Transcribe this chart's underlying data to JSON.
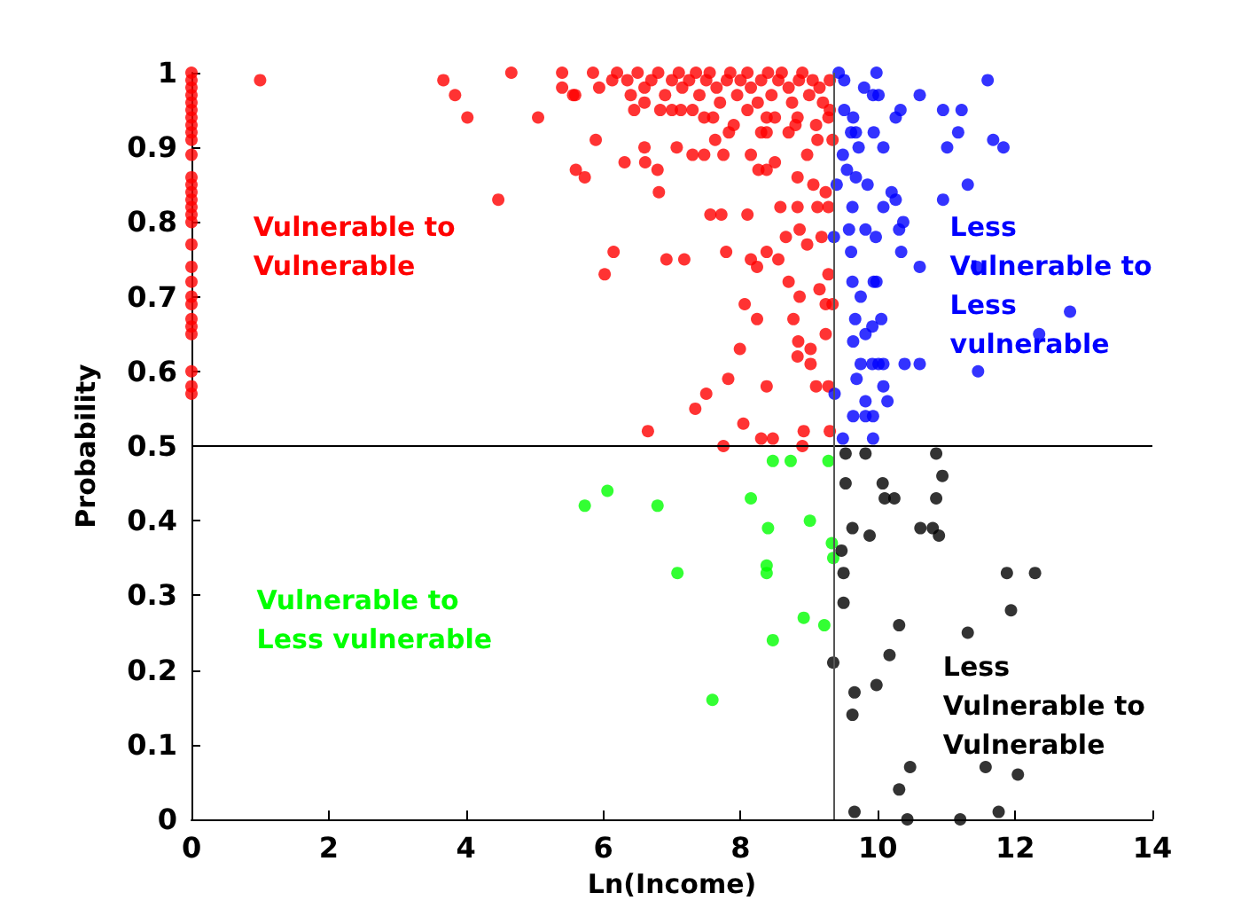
{
  "chart_data": {
    "type": "scatter",
    "xlabel": "Ln(Income)",
    "ylabel": "Probability",
    "xlim": [
      0,
      14
    ],
    "ylim": [
      0,
      1
    ],
    "xticks": [
      0,
      2,
      4,
      6,
      8,
      10,
      12,
      14
    ],
    "yticks": [
      0,
      0.1,
      0.2,
      0.3,
      0.4,
      0.5,
      0.6,
      0.7,
      0.8,
      0.9,
      1
    ],
    "marker": "circle",
    "ref_lines": [
      {
        "axis": "y",
        "value": 0.5,
        "color": "#000000"
      },
      {
        "axis": "x",
        "value": 9.35,
        "color": "#555555"
      }
    ],
    "series": [
      {
        "name": "Vulnerable to\nVulnerable",
        "color": "#ff0000",
        "x": [
          0,
          0,
          0,
          0,
          0,
          0,
          0,
          0,
          0,
          0,
          0,
          0,
          0,
          0,
          0,
          0,
          0,
          0,
          0,
          0,
          0,
          0,
          0,
          0,
          0,
          0,
          0,
          0,
          0,
          1.0,
          3.67,
          3.84,
          4.02,
          4.66,
          4.47,
          5.05,
          5.4,
          5.4,
          5.59,
          5.56,
          5.89,
          5.85,
          5.94,
          5.6,
          5.73,
          6.13,
          6.31,
          6.6,
          6.61,
          6.79,
          6.81,
          6.15,
          6.02,
          6.92,
          7.18,
          6.65,
          7.34,
          7.5,
          7.82,
          7.75,
          8.04,
          8.3,
          8.47,
          8.9,
          8.38,
          8.92,
          9.1,
          9.3,
          9.28,
          7.99,
          8.06,
          8.24,
          8.77,
          8.84,
          8.83,
          9.02,
          9.02,
          9.24,
          9.24,
          9.34,
          9.15,
          9.28,
          8.7,
          8.86,
          8.15,
          8.24,
          8.38,
          8.55,
          7.79,
          8.1,
          7.56,
          7.72,
          8.58,
          8.66,
          8.83,
          8.97,
          9.12,
          9.28,
          9.18,
          8.86,
          8.38,
          8.5,
          8.26,
          8.15,
          7.75,
          7.63,
          7.47,
          7.3,
          7.07,
          9.06,
          9.24,
          8.83,
          8.97,
          9.34,
          9.12,
          8.7,
          8.38,
          7.83,
          7.47,
          7.13,
          6.83,
          6.45,
          8.38,
          8.83,
          9.28,
          6.2,
          6.35,
          6.5,
          6.6,
          6.7,
          6.8,
          6.9,
          7.0,
          7.1,
          7.15,
          7.25,
          7.35,
          7.4,
          7.5,
          7.55,
          7.65,
          7.7,
          7.8,
          7.85,
          7.95,
          8.0,
          8.1,
          8.15,
          8.25,
          8.3,
          8.4,
          8.45,
          8.55,
          8.6,
          8.7,
          8.75,
          8.85,
          8.9,
          9.0,
          9.05,
          9.15,
          9.2,
          9.3,
          6.6,
          7.0,
          7.3,
          7.6,
          8.1,
          8.5,
          8.8,
          9.1,
          9.3,
          6.4,
          7.9,
          8.3
        ],
        "values": [
          1.0,
          0.99,
          0.98,
          0.97,
          0.96,
          0.95,
          0.94,
          0.93,
          0.92,
          0.91,
          0.89,
          0.86,
          0.85,
          0.84,
          0.83,
          0.82,
          0.81,
          0.8,
          0.77,
          0.74,
          0.72,
          0.7,
          0.69,
          0.67,
          0.66,
          0.65,
          0.6,
          0.58,
          0.57,
          0.99,
          0.99,
          0.97,
          0.94,
          1.0,
          0.83,
          0.94,
          1.0,
          0.98,
          0.97,
          0.97,
          0.91,
          1.0,
          0.98,
          0.87,
          0.86,
          0.99,
          0.88,
          0.9,
          0.88,
          0.87,
          0.84,
          0.76,
          0.73,
          0.75,
          0.75,
          0.52,
          0.55,
          0.57,
          0.59,
          0.5,
          0.53,
          0.51,
          0.51,
          0.5,
          0.58,
          0.52,
          0.58,
          0.52,
          0.58,
          0.63,
          0.69,
          0.67,
          0.67,
          0.64,
          0.62,
          0.63,
          0.61,
          0.65,
          0.69,
          0.69,
          0.71,
          0.73,
          0.72,
          0.7,
          0.75,
          0.74,
          0.76,
          0.75,
          0.76,
          0.81,
          0.81,
          0.81,
          0.82,
          0.78,
          0.82,
          0.77,
          0.82,
          0.82,
          0.78,
          0.79,
          0.87,
          0.88,
          0.87,
          0.89,
          0.89,
          0.91,
          0.89,
          0.89,
          0.9,
          0.85,
          0.84,
          0.86,
          0.89,
          0.91,
          0.91,
          0.92,
          0.92,
          0.92,
          0.94,
          0.95,
          0.95,
          0.95,
          0.94,
          0.94,
          0.94,
          1.0,
          0.99,
          1.0,
          0.98,
          0.99,
          1.0,
          0.97,
          0.99,
          1.0,
          0.98,
          0.99,
          1.0,
          0.97,
          0.99,
          1.0,
          0.98,
          0.96,
          0.99,
          1.0,
          0.97,
          0.99,
          1.0,
          0.98,
          0.96,
          0.99,
          1.0,
          0.97,
          0.99,
          1.0,
          0.98,
          0.96,
          0.99,
          1.0,
          0.97,
          0.99,
          0.98,
          0.96,
          0.99,
          0.96,
          0.95,
          0.95,
          0.94,
          0.95,
          0.94,
          0.93,
          0.93,
          0.95,
          0.97,
          0.93,
          0.92
        ]
      },
      {
        "name": "Less\nVulnerable to\nLess\nvulnerable",
        "color": "#0000ff",
        "x": [
          9.43,
          9.51,
          9.8,
          9.98,
          9.93,
          10.01,
          10.61,
          11.6,
          10.95,
          11.22,
          10.26,
          10.33,
          9.51,
          9.64,
          9.68,
          9.61,
          9.94,
          11.17,
          11.68,
          11.83,
          11.01,
          10.08,
          9.72,
          9.49,
          9.55,
          9.68,
          9.85,
          9.4,
          11.31,
          10.2,
          10.26,
          10.95,
          10.08,
          9.63,
          10.37,
          10.31,
          9.82,
          9.97,
          9.58,
          9.36,
          9.61,
          10.34,
          10.61,
          9.63,
          9.94,
          9.98,
          9.75,
          12.8,
          12.35,
          11.46,
          9.67,
          10.05,
          9.92,
          9.82,
          9.64,
          10.01,
          9.92,
          10.08,
          10.39,
          10.61,
          9.75,
          9.69,
          10.08,
          9.37,
          9.82,
          10.14,
          9.64,
          9.82,
          9.93,
          9.49,
          9.93,
          11.44
        ],
        "values": [
          1.0,
          0.99,
          0.98,
          1.0,
          0.97,
          0.97,
          0.97,
          0.99,
          0.95,
          0.95,
          0.94,
          0.95,
          0.95,
          0.94,
          0.92,
          0.92,
          0.92,
          0.92,
          0.91,
          0.9,
          0.9,
          0.9,
          0.9,
          0.89,
          0.87,
          0.86,
          0.85,
          0.85,
          0.85,
          0.84,
          0.83,
          0.83,
          0.82,
          0.82,
          0.8,
          0.79,
          0.79,
          0.78,
          0.79,
          0.78,
          0.76,
          0.76,
          0.74,
          0.72,
          0.72,
          0.72,
          0.7,
          0.68,
          0.65,
          0.6,
          0.67,
          0.67,
          0.66,
          0.65,
          0.64,
          0.61,
          0.61,
          0.61,
          0.61,
          0.61,
          0.61,
          0.59,
          0.58,
          0.57,
          0.56,
          0.56,
          0.54,
          0.54,
          0.54,
          0.51,
          0.51,
          0.74
        ]
      },
      {
        "name": "Vulnerable to\nLess vulnerable",
        "color": "#00ff00",
        "x": [
          5.73,
          6.06,
          6.79,
          7.08,
          7.59,
          8.15,
          8.47,
          8.73,
          9.28,
          8.4,
          9.01,
          8.38,
          8.38,
          8.47,
          8.92,
          9.22,
          9.33,
          9.35
        ],
        "values": [
          0.42,
          0.44,
          0.42,
          0.33,
          0.16,
          0.43,
          0.48,
          0.48,
          0.48,
          0.39,
          0.4,
          0.34,
          0.33,
          0.24,
          0.27,
          0.26,
          0.37,
          0.35
        ]
      },
      {
        "name": "Less\nVulnerable to\nVulnerable",
        "color": "#000000",
        "x": [
          9.53,
          9.82,
          10.85,
          10.94,
          9.53,
          10.07,
          10.1,
          10.24,
          10.85,
          9.63,
          9.88,
          10.62,
          10.8,
          10.89,
          9.47,
          9.5,
          9.5,
          9.35,
          9.66,
          9.63,
          9.98,
          10.17,
          10.31,
          11.31,
          11.88,
          12.29,
          11.94,
          10.47,
          10.31,
          11.57,
          12.04,
          11.76,
          9.66,
          10.43,
          11.2
        ],
        "values": [
          0.49,
          0.49,
          0.49,
          0.46,
          0.45,
          0.45,
          0.43,
          0.43,
          0.43,
          0.39,
          0.38,
          0.39,
          0.39,
          0.38,
          0.36,
          0.33,
          0.29,
          0.21,
          0.17,
          0.14,
          0.18,
          0.22,
          0.26,
          0.25,
          0.33,
          0.33,
          0.28,
          0.07,
          0.04,
          0.07,
          0.06,
          0.01,
          0.01,
          0.0,
          0.0
        ]
      }
    ]
  }
}
